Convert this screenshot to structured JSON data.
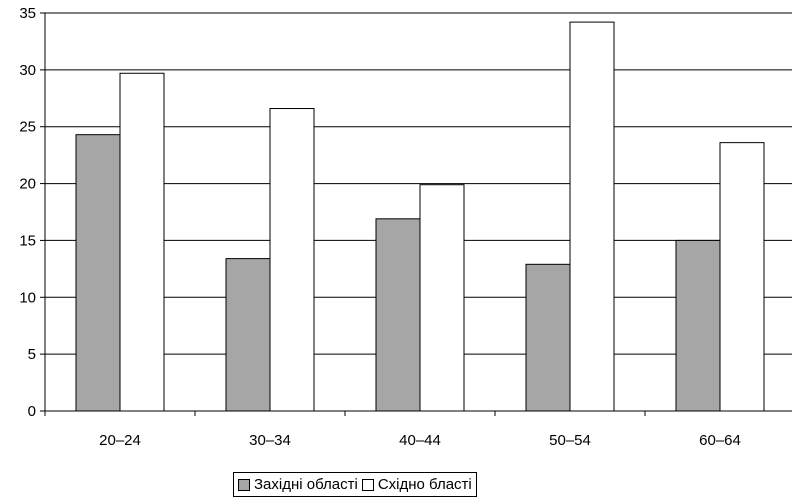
{
  "chart_data": {
    "type": "bar",
    "categories": [
      "20–24",
      "30–34",
      "40–44",
      "50–54",
      "60–64"
    ],
    "series": [
      {
        "name": "Західні області",
        "values": [
          24.3,
          13.4,
          16.9,
          12.9,
          15.0
        ],
        "color": "#a6a6a6"
      },
      {
        "name": "Східнo бласті",
        "values": [
          29.7,
          26.6,
          19.9,
          34.2,
          23.6
        ],
        "color": "#ffffff"
      }
    ],
    "ylim": [
      0,
      35
    ],
    "yticks": [
      "0",
      "5",
      "10",
      "15",
      "20",
      "25",
      "30",
      "35"
    ],
    "grid": true,
    "legend_position": "bottom"
  }
}
